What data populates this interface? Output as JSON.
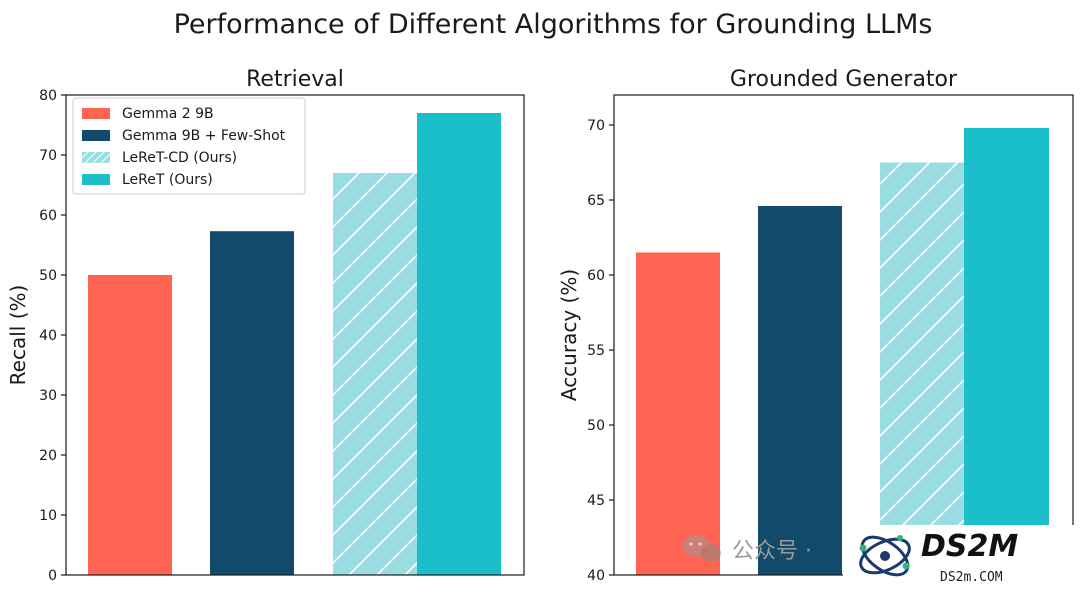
{
  "figure": {
    "title": "Performance of Different Algorithms for Grounding LLMs"
  },
  "colors": {
    "gemma2_9b": "#ff6352",
    "gemma_fewshot": "#124a6b",
    "leret_cd": "#99dce2",
    "leret": "#1bbfc9"
  },
  "legend": [
    {
      "label": "Gemma 2 9B",
      "color_key": "gemma2_9b",
      "hatch": false
    },
    {
      "label": "Gemma 9B + Few-Shot",
      "color_key": "gemma_fewshot",
      "hatch": false
    },
    {
      "label": "LeReT-CD (Ours)",
      "color_key": "leret_cd",
      "hatch": true
    },
    {
      "label": "LeReT (Ours)",
      "color_key": "leret",
      "hatch": false
    }
  ],
  "chart_data": [
    {
      "type": "bar",
      "title": "Retrieval",
      "xlabel": "",
      "ylabel": "Recall (%)",
      "ylim": [
        0,
        80
      ],
      "yticks": [
        "0",
        "10",
        "20",
        "30",
        "40",
        "50",
        "60",
        "70",
        "80"
      ],
      "categories": [
        "Gemma 2 9B",
        "Gemma 9B + Few-Shot",
        "LeReT-CD (Ours)",
        "LeReT (Ours)"
      ],
      "values": [
        50,
        57.3,
        67,
        77
      ],
      "legend_position": "upper-left"
    },
    {
      "type": "bar",
      "title": "Grounded Generator",
      "xlabel": "",
      "ylabel": "Accuracy (%)",
      "ylim": [
        40,
        72
      ],
      "yticks": [
        "40",
        "45",
        "50",
        "55",
        "60",
        "65",
        "70"
      ],
      "categories": [
        "Gemma 2 9B",
        "Gemma 9B + Few-Shot",
        "LeReT-CD (Ours)",
        "LeReT (Ours)"
      ],
      "values": [
        61.5,
        64.6,
        67.5,
        69.8
      ]
    }
  ],
  "watermarks": {
    "wechat_text": "公众号 ·",
    "brand_name": "DS2M",
    "brand_url": "DS2m.COM"
  }
}
